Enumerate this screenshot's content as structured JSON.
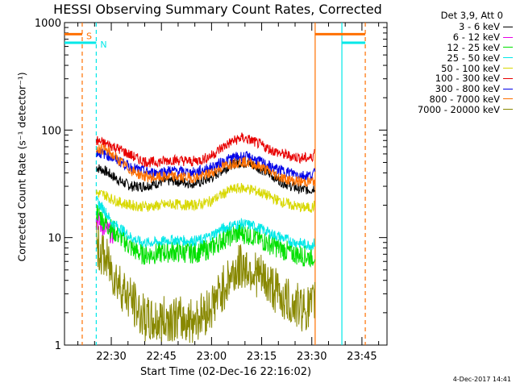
{
  "chart_data": {
    "type": "line",
    "title": "HESSI Observing Summary Count Rates, Corrected",
    "xlabel": "Start Time (02-Dec-16 22:16:02)",
    "ylabel": "Corrected Count Rate (s⁻¹ detector⁻¹)",
    "y_scale": "log",
    "ylim": [
      1,
      1000
    ],
    "xlim_minutes_after_22_00": [
      16.0,
      58.5
    ],
    "x_tick_labels": [
      "22:30",
      "22:45",
      "23:00",
      "23:15",
      "23:30",
      "23:45"
    ],
    "y_tick_labels": [
      "1",
      "10",
      "100",
      "1000"
    ],
    "legend_title": "Det 3,9, Att 0",
    "legend_position": "right",
    "series": [
      {
        "name": "3 - 6 keV",
        "color": "#000000",
        "x": [
          25.5,
          28,
          30,
          33,
          36,
          39,
          42,
          45,
          48,
          51,
          54,
          57,
          60,
          63,
          66,
          69,
          72,
          75,
          78,
          81,
          84,
          87,
          90,
          91
        ],
        "values": [
          45,
          42,
          38,
          33,
          30,
          30,
          31,
          33,
          34,
          33,
          32,
          33,
          36,
          42,
          48,
          50,
          48,
          43,
          38,
          33,
          30,
          28,
          28,
          30
        ]
      },
      {
        "name": "6 - 12 keV",
        "color": "#e800e8",
        "x": [
          25.5,
          27,
          29,
          31
        ],
        "values": [
          15,
          13,
          11.5,
          10.5
        ]
      },
      {
        "name": "12 - 25 keV",
        "color": "#00e000",
        "x": [
          25.5,
          28,
          30,
          33,
          36,
          39,
          42,
          45,
          48,
          51,
          54,
          57,
          60,
          63,
          66,
          69,
          72,
          75,
          78,
          81,
          84,
          87,
          90,
          91
        ],
        "values": [
          18,
          14,
          12,
          10,
          8,
          7,
          7,
          7.2,
          7.4,
          7.3,
          7.2,
          7.4,
          8,
          9.5,
          10.5,
          11,
          10.5,
          9.5,
          8.5,
          7.8,
          7.2,
          6.8,
          6.6,
          7
        ]
      },
      {
        "name": "25 - 50 keV",
        "color": "#00e8e8",
        "x": [
          25.5,
          28,
          30,
          33,
          36,
          39,
          42,
          45,
          48,
          51,
          54,
          57,
          60,
          63,
          66,
          69,
          72,
          75,
          78,
          81,
          84,
          87,
          90,
          91
        ],
        "values": [
          22,
          18,
          14,
          12,
          10,
          9,
          9,
          9.2,
          9.5,
          9.4,
          9.3,
          9.5,
          10.5,
          12,
          13,
          13.5,
          13,
          12,
          10.8,
          10,
          9.2,
          8.8,
          8.5,
          9
        ]
      },
      {
        "name": "50 - 100 keV",
        "color": "#d8d800",
        "x": [
          25.5,
          28,
          30,
          33,
          36,
          39,
          42,
          45,
          48,
          51,
          54,
          57,
          60,
          63,
          66,
          69,
          72,
          75,
          78,
          81,
          84,
          87,
          90,
          91
        ],
        "values": [
          26,
          25,
          23,
          21,
          20,
          19.5,
          19.5,
          20,
          20.5,
          20.2,
          20,
          20.5,
          22,
          25,
          28,
          29,
          28,
          26,
          23.5,
          21.5,
          20,
          19,
          19,
          20
        ]
      },
      {
        "name": "100 - 300 keV",
        "color": "#e80000",
        "x": [
          25.5,
          28,
          30,
          33,
          36,
          39,
          42,
          45,
          48,
          51,
          54,
          57,
          60,
          63,
          66,
          69,
          72,
          75,
          78,
          81,
          84,
          87,
          90,
          91
        ],
        "values": [
          80,
          75,
          72,
          65,
          58,
          52,
          50,
          51,
          53,
          52,
          51,
          53,
          58,
          68,
          78,
          85,
          80,
          72,
          65,
          60,
          57,
          55,
          55,
          65
        ]
      },
      {
        "name": "300 - 800 keV",
        "color": "#0000e8",
        "x": [
          25.5,
          28,
          30,
          33,
          36,
          39,
          42,
          45,
          48,
          51,
          54,
          57,
          60,
          63,
          66,
          69,
          72,
          75,
          78,
          81,
          84,
          87,
          90,
          91
        ],
        "values": [
          62,
          60,
          56,
          50,
          45,
          42,
          40,
          41,
          42,
          41,
          40,
          42,
          45,
          50,
          55,
          57,
          55,
          50,
          45,
          42,
          40,
          38,
          38,
          40
        ]
      },
      {
        "name": "800 - 7000 keV",
        "color": "#ff7000",
        "x": [
          25.5,
          28,
          30,
          33,
          36,
          39,
          42,
          45,
          48,
          51,
          54,
          57,
          60,
          63,
          66,
          69,
          72,
          75,
          78,
          81,
          84,
          87,
          90,
          91
        ],
        "values": [
          68,
          66,
          60,
          50,
          42,
          38,
          36,
          36.5,
          37,
          36.5,
          36,
          37,
          40,
          45,
          49,
          51,
          49,
          45,
          40,
          36,
          34,
          33,
          33,
          34
        ]
      },
      {
        "name": "7000 - 20000 keV",
        "color": "#888800",
        "x": [
          25.5,
          28,
          30,
          33,
          36,
          39,
          42,
          45,
          48,
          51,
          54,
          57,
          60,
          63,
          66,
          69,
          72,
          75,
          78,
          81,
          84,
          87,
          90,
          91
        ],
        "values": [
          8.5,
          6.5,
          5,
          3.5,
          2.6,
          1.9,
          1.6,
          1.7,
          1.8,
          1.7,
          1.7,
          1.9,
          2.3,
          3.2,
          4.5,
          5.5,
          5,
          4.2,
          3.5,
          2.8,
          2.4,
          2.2,
          2.2,
          2.6
        ]
      }
    ],
    "annotations": [
      {
        "label": "S",
        "color": "#ff7000",
        "x_start": 16.0,
        "x_end": 21.3,
        "y": 780
      },
      {
        "label": "N",
        "color": "#00e8e8",
        "x_start": 16.0,
        "x_end": 25.5,
        "y": 650
      }
    ],
    "vertical_lines": [
      {
        "color": "#ff7000",
        "dashed": true,
        "x": 21.3
      },
      {
        "color": "#00e8e8",
        "dashed": true,
        "x": 25.5
      },
      {
        "color": "#ff7000",
        "dashed": false,
        "x": 91.0
      },
      {
        "color": "#00e8e8",
        "dashed": false,
        "x": 99.0
      },
      {
        "color": "#ff7000",
        "dashed": true,
        "x": 106.0
      }
    ],
    "segments": [
      {
        "color": "#ff7000",
        "x_start": 91.0,
        "x_end": 106.0,
        "y": 780
      },
      {
        "color": "#00e8e8",
        "x_start": 99.0,
        "x_end": 106.0,
        "y": 650
      }
    ]
  },
  "footer": "4-Dec-2017 14:41"
}
